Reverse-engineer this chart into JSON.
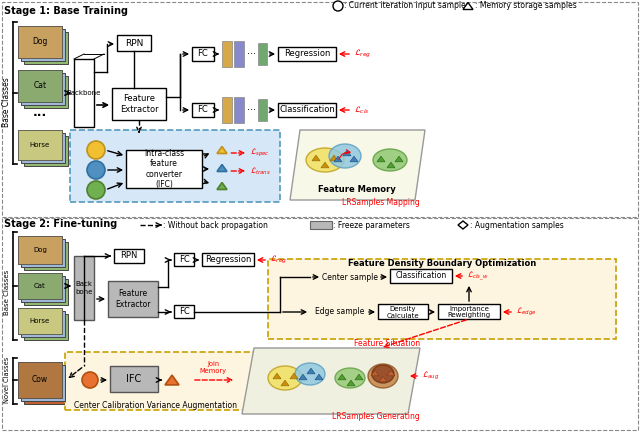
{
  "title_stage1": "Stage 1: Base Training",
  "title_stage2": "Stage 2: Fine-tuning",
  "legend1_circle": ": Current iteration input samples",
  "legend1_triangle": ": Memory storage samples",
  "legend2_dash": ": Without back propagation",
  "legend2_gray": ": Freeze parameters",
  "legend2_diamond": ": Augmentation samples",
  "bg_color": "#ffffff",
  "ifc_bg": "#d6e8f7",
  "ifc2_bg": "#fef5e0",
  "fdbo_bg": "#fef5e0",
  "feature_memory_bg": "#f5f5dc"
}
